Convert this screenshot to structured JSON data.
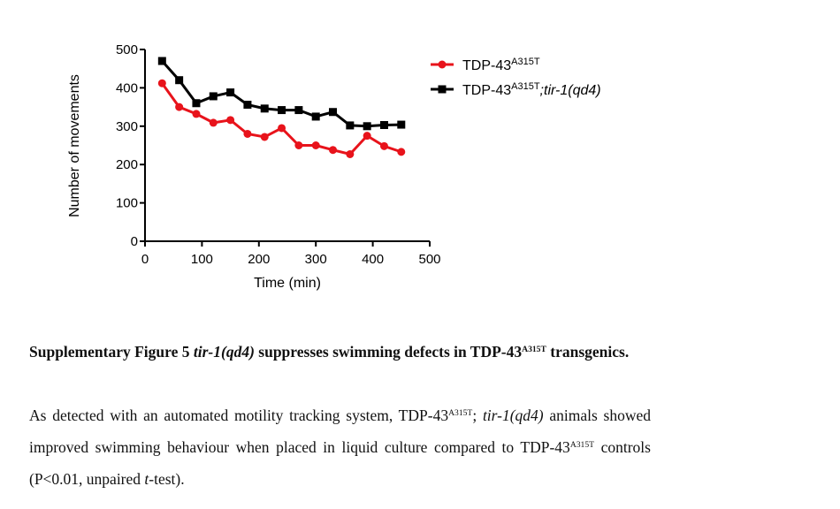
{
  "chart_data": {
    "type": "line",
    "xlabel": "Time (min)",
    "ylabel": "Number of movements",
    "xlim": [
      0,
      500
    ],
    "ylim": [
      0,
      500
    ],
    "xticks": [
      0,
      100,
      200,
      300,
      400,
      500
    ],
    "yticks": [
      0,
      100,
      200,
      300,
      400,
      500
    ],
    "x": [
      30,
      60,
      90,
      120,
      150,
      180,
      210,
      240,
      270,
      300,
      330,
      360,
      390,
      420,
      450
    ],
    "series": [
      {
        "name_base": "TDP-43",
        "name_sup": "A315T",
        "name_suffix": "",
        "color": "#e8131b",
        "marker": "circle",
        "values": [
          412,
          350,
          332,
          309,
          316,
          280,
          272,
          295,
          250,
          250,
          238,
          227,
          275,
          248,
          233
        ]
      },
      {
        "name_base": "TDP-43",
        "name_sup": "A315T",
        "name_suffix": ";tir-1(qd4)",
        "color": "#000000",
        "marker": "square",
        "values": [
          470,
          420,
          360,
          378,
          388,
          356,
          346,
          342,
          342,
          325,
          337,
          302,
          300,
          303,
          304
        ]
      }
    ],
    "grid": false,
    "legend_position": "top-right"
  },
  "caption": {
    "title_prefix": "Supplementary Figure 5",
    "title_gene": "tir-1(qd4)",
    "title_mid": "suppresses swimming defects in TDP-43",
    "title_sup": "A315T",
    "title_end": "transgenics.",
    "body_1": "As detected with an automated motility tracking system, TDP-43",
    "body_sup1": "A315T",
    "body_2": "; ",
    "body_gene": "tir-1(qd4)",
    "body_3": " animals showed improved swimming behaviour when placed in liquid culture compared to TDP-43",
    "body_sup2": "A315T",
    "body_4": " controls (P<0.01, unpaired ",
    "body_t": "t",
    "body_5": "-test)."
  }
}
